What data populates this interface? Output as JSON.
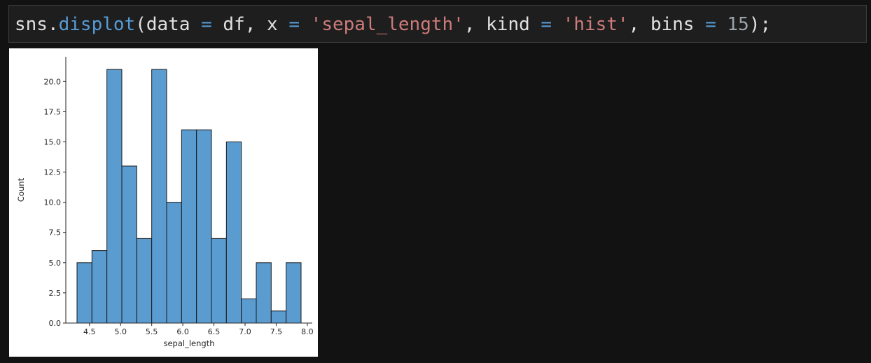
{
  "code": {
    "tokens": [
      {
        "t": "sns.",
        "c": "plain"
      },
      {
        "t": "displot",
        "c": "fn"
      },
      {
        "t": "(data ",
        "c": "plain"
      },
      {
        "t": "=",
        "c": "op"
      },
      {
        "t": " df, x ",
        "c": "plain"
      },
      {
        "t": "=",
        "c": "op"
      },
      {
        "t": " ",
        "c": "plain"
      },
      {
        "t": "'sepal_length'",
        "c": "str"
      },
      {
        "t": ", kind ",
        "c": "plain"
      },
      {
        "t": "=",
        "c": "op"
      },
      {
        "t": " ",
        "c": "plain"
      },
      {
        "t": "'hist'",
        "c": "str"
      },
      {
        "t": ", bins ",
        "c": "plain"
      },
      {
        "t": "=",
        "c": "op"
      },
      {
        "t": " ",
        "c": "plain"
      },
      {
        "t": "15",
        "c": "num"
      },
      {
        "t": ");",
        "c": "plain"
      }
    ]
  },
  "colors": {
    "bar_fill": "#5a9bd0",
    "bar_edge": "#1a1a1a",
    "background": "#121212",
    "code_fn": "#569cd6",
    "code_str": "#ce7b7b",
    "code_num": "#9da3ab"
  },
  "chart_data": {
    "type": "bar",
    "title": "",
    "xlabel": "sepal_length",
    "ylabel": "Count",
    "bin_start": 4.3,
    "bin_end": 7.9,
    "bins": 15,
    "values": [
      5,
      6,
      21,
      13,
      7,
      21,
      10,
      16,
      16,
      7,
      15,
      2,
      5,
      1,
      5
    ],
    "xlim": [
      4.12,
      8.08
    ],
    "ylim": [
      0,
      22.05
    ],
    "xticks": [
      4.5,
      5.0,
      5.5,
      6.0,
      6.5,
      7.0,
      7.5,
      8.0
    ],
    "xtick_labels": [
      "4.5",
      "5.0",
      "5.5",
      "6.0",
      "6.5",
      "7.0",
      "7.5",
      "8.0"
    ],
    "yticks": [
      0,
      2.5,
      5,
      7.5,
      10,
      12.5,
      15,
      17.5,
      20
    ],
    "ytick_labels": [
      "0.0",
      "2.5",
      "5.0",
      "7.5",
      "10.0",
      "12.5",
      "15.0",
      "17.5",
      "20.0"
    ],
    "grid": false,
    "spines": "left-bottom"
  }
}
